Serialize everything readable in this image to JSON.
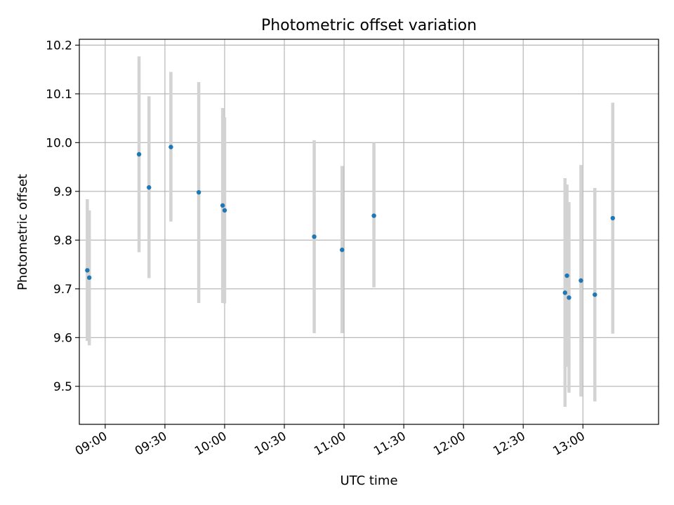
{
  "chart_data": {
    "type": "scatter",
    "title": "Photometric offset variation",
    "xlabel": "UTC time",
    "ylabel": "Photometric offset",
    "xlim": [
      "08:47",
      "13:38"
    ],
    "ylim": [
      9.422,
      10.212
    ],
    "x_ticks": [
      "09:00",
      "09:30",
      "10:00",
      "10:30",
      "11:00",
      "11:30",
      "12:00",
      "12:30",
      "13:00"
    ],
    "y_ticks": [
      "9.5",
      "9.6",
      "9.7",
      "9.8",
      "9.9",
      "10.0",
      "10.1",
      "10.2"
    ],
    "grid": true,
    "points": [
      {
        "x": "08:51",
        "y": 9.738,
        "err_low": 9.593,
        "err_high": 9.884
      },
      {
        "x": "08:52",
        "y": 9.723,
        "err_low": 9.584,
        "err_high": 9.861
      },
      {
        "x": "09:17",
        "y": 9.976,
        "err_low": 9.775,
        "err_high": 10.177
      },
      {
        "x": "09:22",
        "y": 9.908,
        "err_low": 9.722,
        "err_high": 10.095
      },
      {
        "x": "09:33",
        "y": 9.991,
        "err_low": 9.838,
        "err_high": 10.145
      },
      {
        "x": "09:47",
        "y": 9.898,
        "err_low": 9.671,
        "err_high": 10.124
      },
      {
        "x": "09:59",
        "y": 9.871,
        "err_low": 9.671,
        "err_high": 10.071
      },
      {
        "x": "10:00",
        "y": 9.861,
        "err_low": 9.67,
        "err_high": 10.052
      },
      {
        "x": "10:45",
        "y": 9.807,
        "err_low": 9.609,
        "err_high": 10.005
      },
      {
        "x": "10:59",
        "y": 9.78,
        "err_low": 9.609,
        "err_high": 9.952
      },
      {
        "x": "11:15",
        "y": 9.85,
        "err_low": 9.703,
        "err_high": 10.0
      },
      {
        "x": "12:51",
        "y": 9.692,
        "err_low": 9.458,
        "err_high": 9.927
      },
      {
        "x": "12:52",
        "y": 9.727,
        "err_low": 9.54,
        "err_high": 9.914
      },
      {
        "x": "12:53",
        "y": 9.682,
        "err_low": 9.487,
        "err_high": 9.878
      },
      {
        "x": "12:59",
        "y": 9.717,
        "err_low": 9.479,
        "err_high": 9.954
      },
      {
        "x": "13:06",
        "y": 9.688,
        "err_low": 9.469,
        "err_high": 9.907
      },
      {
        "x": "13:15",
        "y": 9.845,
        "err_low": 9.608,
        "err_high": 10.082
      }
    ],
    "colors": {
      "points": "#1f77b4",
      "errorbars": "#d3d3d3",
      "grid": "#b0b0b0",
      "axes": "#000000"
    }
  }
}
